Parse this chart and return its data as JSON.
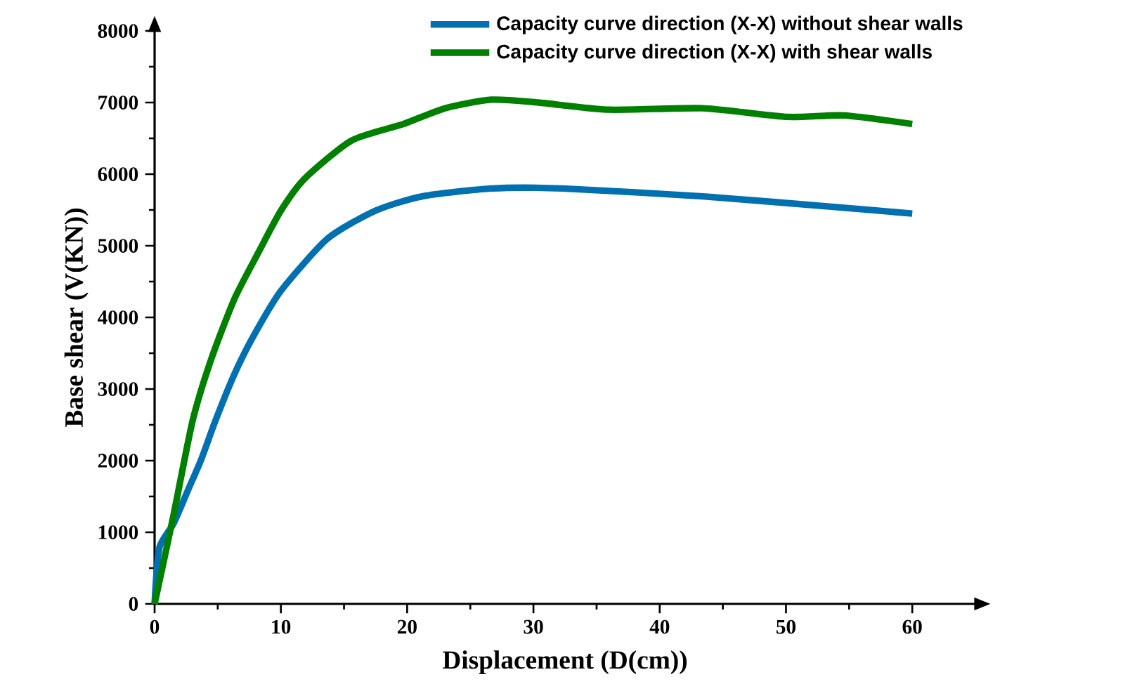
{
  "chart_data": {
    "type": "line",
    "xlabel": "Displacement (D(cm))",
    "ylabel": "Base shear (V(KN))",
    "xlim": [
      0,
      65
    ],
    "ylim": [
      0,
      8000
    ],
    "xticks": [
      0,
      10,
      20,
      30,
      40,
      50,
      60
    ],
    "yticks": [
      0,
      1000,
      2000,
      3000,
      4000,
      5000,
      6000,
      7000,
      8000
    ],
    "grid": false,
    "legend": "top right",
    "marker": "none",
    "line_style": "solid",
    "series": [
      {
        "name": "Capacity curve direction (X-X) without shear walls",
        "color": "#0070b0",
        "x": [
          0,
          0.37,
          1.5,
          2.6,
          3.7,
          4.8,
          6.3,
          7.8,
          10.0,
          13.7,
          17.5,
          21.2,
          26.7,
          32.3,
          43.4,
          54.6,
          60
        ],
        "values": [
          0,
          780,
          1120,
          1570,
          2020,
          2550,
          3200,
          3730,
          4370,
          5100,
          5490,
          5690,
          5800,
          5800,
          5690,
          5530,
          5450
        ]
      },
      {
        "name": "Capacity curve direction (X-X) with shear walls",
        "color": "#008000",
        "x": [
          0,
          1.5,
          3.0,
          4.45,
          6.3,
          8.2,
          10.0,
          11.9,
          15.6,
          19.7,
          23.0,
          26.7,
          30.4,
          36.0,
          43.4,
          50.1,
          54.6,
          60
        ],
        "values": [
          0,
          1240,
          2550,
          3400,
          4250,
          4900,
          5490,
          5940,
          6470,
          6700,
          6920,
          7040,
          7000,
          6900,
          6920,
          6800,
          6820,
          6700
        ]
      }
    ]
  }
}
